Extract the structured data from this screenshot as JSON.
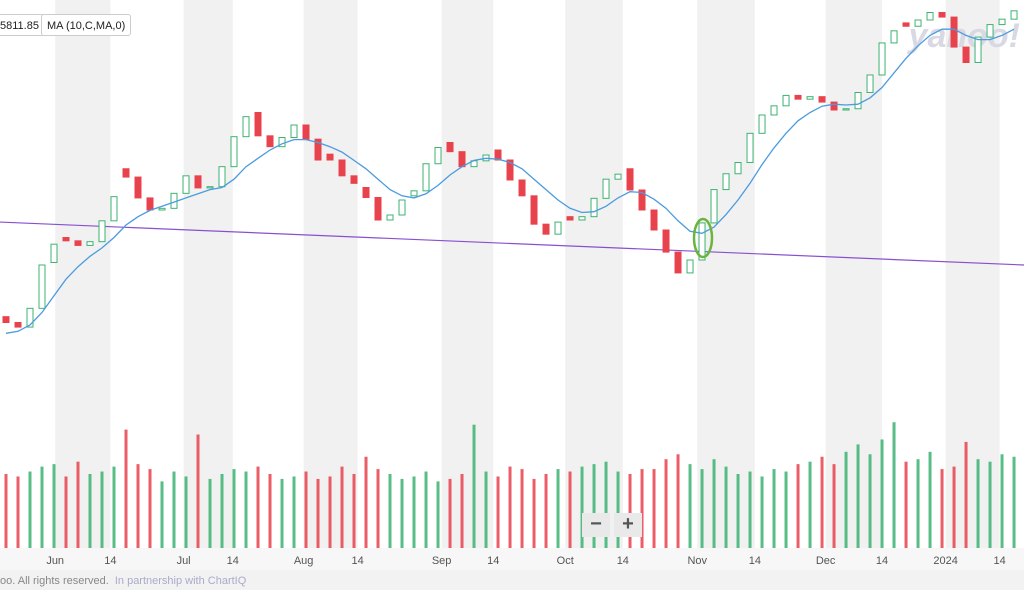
{
  "chart_data": {
    "type": "candlestick",
    "price_label": "5811.85",
    "watermark": "yahoo!",
    "footer": "oo. All rights reserved.",
    "partner": "In partnership with ChartIQ",
    "zoom_out": "−",
    "zoom_in": "+",
    "up_color": "#3cb371",
    "down_color": "#e8424c",
    "xlim": [
      -0.5,
      84.83
    ],
    "ylim": [
      3864,
      4800
    ],
    "xticks": [
      {
        "value": 4.1,
        "label": "Jun"
      },
      {
        "value": 8.7,
        "label": "14"
      },
      {
        "value": 14.8,
        "label": "Jul"
      },
      {
        "value": 18.9,
        "label": "14"
      },
      {
        "value": 24.8,
        "label": "Aug"
      },
      {
        "value": 29.3,
        "label": "14"
      },
      {
        "value": 36.3,
        "label": "Sep"
      },
      {
        "value": 40.6,
        "label": "14"
      },
      {
        "value": 46.6,
        "label": "Oct"
      },
      {
        "value": 51.4,
        "label": "14"
      },
      {
        "value": 57.6,
        "label": "Nov"
      },
      {
        "value": 62.4,
        "label": "14"
      },
      {
        "value": 68.3,
        "label": "Dec"
      },
      {
        "value": 73,
        "label": "14"
      },
      {
        "value": 78.3,
        "label": "2024"
      },
      {
        "value": 82.8,
        "label": "14"
      }
    ],
    "shade_bands": true,
    "open": [
      4040,
      4026,
      4015,
      4060,
      4170,
      4230,
      4222,
      4211,
      4220,
      4270,
      4395,
      4375,
      4325,
      4296,
      4300,
      4336,
      4378,
      4349,
      4352,
      4400,
      4472,
      4530,
      4474,
      4448,
      4470,
      4500,
      4466,
      4430,
      4416,
      4378,
      4350,
      4326,
      4272,
      4284,
      4330,
      4342,
      4407,
      4458,
      4436,
      4400,
      4414,
      4440,
      4416,
      4368,
      4330,
      4262,
      4238,
      4280,
      4272,
      4280,
      4324,
      4370,
      4395,
      4344,
      4296,
      4248,
      4195,
      4145,
      4176,
      4265,
      4345,
      4383,
      4410,
      4480,
      4524,
      4546,
      4571,
      4562,
      4568,
      4555,
      4536,
      4539,
      4578,
      4620,
      4697,
      4745,
      4737,
      4752,
      4770,
      4759,
      4687,
      4650,
      4711,
      4741,
      4754
    ],
    "close": [
      4026,
      4015,
      4060,
      4164,
      4214,
      4222,
      4211,
      4220,
      4270,
      4328,
      4375,
      4325,
      4296,
      4300,
      4336,
      4378,
      4349,
      4352,
      4400,
      4472,
      4520,
      4474,
      4448,
      4470,
      4500,
      4466,
      4416,
      4416,
      4378,
      4360,
      4326,
      4272,
      4284,
      4320,
      4342,
      4407,
      4446,
      4436,
      4400,
      4414,
      4428,
      4416,
      4368,
      4330,
      4262,
      4238,
      4267,
      4272,
      4280,
      4324,
      4370,
      4382,
      4344,
      4296,
      4248,
      4195,
      4145,
      4176,
      4265,
      4345,
      4383,
      4410,
      4480,
      4524,
      4546,
      4571,
      4562,
      4568,
      4555,
      4536,
      4539,
      4578,
      4620,
      4697,
      4726,
      4737,
      4752,
      4770,
      4759,
      4687,
      4650,
      4711,
      4741,
      4754,
      4774
    ],
    "ma": {
      "name": "MA (10,C,MA,0)",
      "color": "#4a9be0",
      "values": [
        4000,
        4005,
        4020,
        4050,
        4090,
        4130,
        4160,
        4185,
        4205,
        4230,
        4260,
        4280,
        4295,
        4305,
        4315,
        4325,
        4335,
        4345,
        4350,
        4370,
        4400,
        4420,
        4440,
        4455,
        4465,
        4465,
        4458,
        4448,
        4435,
        4415,
        4395,
        4370,
        4345,
        4330,
        4325,
        4335,
        4355,
        4380,
        4400,
        4415,
        4420,
        4418,
        4410,
        4395,
        4370,
        4345,
        4320,
        4300,
        4290,
        4292,
        4305,
        4325,
        4340,
        4338,
        4322,
        4300,
        4270,
        4245,
        4240,
        4255,
        4285,
        4320,
        4360,
        4405,
        4445,
        4480,
        4510,
        4530,
        4545,
        4550,
        4548,
        4550,
        4565,
        4590,
        4625,
        4660,
        4690,
        4715,
        4730,
        4730,
        4715,
        4705,
        4705,
        4715,
        4730
      ]
    },
    "trendline": {
      "color": "#8a4fd0",
      "values": [
        4267,
        4164
      ]
    },
    "volume": {
      "ylim": [
        0,
        6000
      ],
      "values": [
        3000,
        2900,
        3100,
        3300,
        3400,
        2900,
        3500,
        3000,
        3100,
        3300,
        4800,
        3400,
        3200,
        2700,
        3100,
        2900,
        4600,
        2800,
        3000,
        3200,
        3100,
        3300,
        3000,
        2800,
        2900,
        3100,
        2800,
        2900,
        3300,
        3000,
        3700,
        3200,
        3000,
        2800,
        2900,
        3100,
        2700,
        2800,
        3000,
        5000,
        3100,
        2900,
        3300,
        3200,
        2800,
        3000,
        3200,
        3100,
        3300,
        3400,
        3500,
        3100,
        3000,
        3200,
        3200,
        3600,
        3800,
        3400,
        3200,
        3600,
        3300,
        3000,
        3100,
        2900,
        3200,
        3100,
        3400,
        3500,
        3700,
        3400,
        3900,
        4200,
        3800,
        4400,
        5100,
        3500,
        3600,
        3900,
        3200,
        3300,
        4300,
        3600,
        3500,
        3800,
        3700
      ]
    }
  }
}
